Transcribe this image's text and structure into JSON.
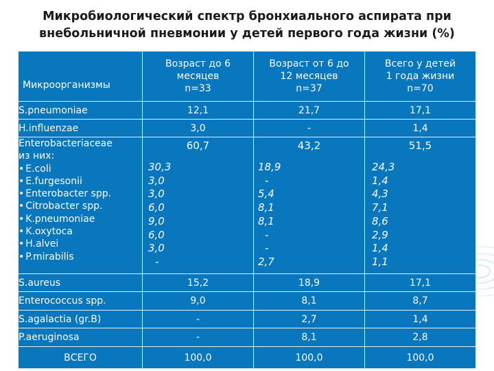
{
  "title": {
    "line1": "Микробиологический спектр бронхиального аспирата при",
    "line2": "внебольничной пневмонии у детей первого года жизни (%)"
  },
  "colors": {
    "table_bg": "#0877be",
    "text": "#ffffff",
    "title": "#1a1a1a"
  },
  "header": {
    "col0": "Микроорганизмы",
    "col1": [
      "Возраст до 6",
      "месяцев",
      "n=33"
    ],
    "col2": [
      "Возраст от 6 до",
      "12 месяцев",
      "n=37"
    ],
    "col3": [
      "Всего у детей",
      "1 года жизни",
      "n=70"
    ]
  },
  "rows_top": [
    {
      "name": "S.pneumoniae",
      "v1": "12,1",
      "v2": "21,7",
      "v3": "17,1"
    },
    {
      "name": "H.influenzae",
      "v1": "3,0",
      "v2": "-",
      "v3": "1,4"
    }
  ],
  "enterobacteria": {
    "name_lines": [
      "Enterobacteriaceae",
      "из них:"
    ],
    "sub_names": [
      "E.coli",
      "E.furgesonii",
      "Enterobacter spp.",
      "Citrobacter spp.",
      "K.pneumoniae",
      "K.oxytoca",
      "H.alvei",
      "P.mirabilis"
    ],
    "bullet": "•",
    "total": {
      "v1": "60,7",
      "v2": "43,2",
      "v3": "51,5"
    },
    "sub_v1": [
      "30,3",
      "3,0",
      "3,0",
      "6,0",
      "9,0",
      "6,0",
      "3,0",
      "-"
    ],
    "sub_v2": [
      "18,9",
      "-",
      "5,4",
      "8,1",
      "8,1",
      "-",
      "-",
      "2,7"
    ],
    "sub_v3": [
      "24,3",
      "1,4",
      "4,3",
      "7,1",
      "8,6",
      "2,9",
      "1,4",
      "1,1"
    ]
  },
  "rows_bottom": [
    {
      "name": "S.aureus",
      "v1": "15,2",
      "v2": "18,9",
      "v3": "17,1"
    },
    {
      "name": "Enterococcus spp.",
      "v1": "9,0",
      "v2": "8,1",
      "v3": "8,7"
    },
    {
      "name": "S.agalactia (gr.B)",
      "v1": "-",
      "v2": "2,7",
      "v3": "1,4"
    },
    {
      "name": "P.aeruginosa",
      "v1": "-",
      "v2": "8,1",
      "v3": "2,8"
    }
  ],
  "total_row": {
    "name": "ВСЕГО",
    "v1": "100,0",
    "v2": "100,0",
    "v3": "100,0"
  }
}
